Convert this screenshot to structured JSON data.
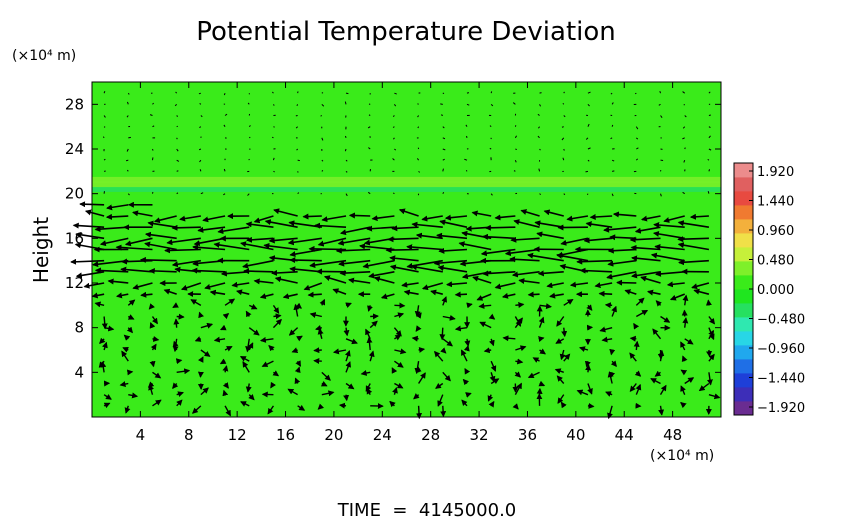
{
  "chart_data": {
    "type": "heatmap",
    "title": "Potential Temperature Deviation",
    "ylabel": "Height",
    "y_unit_label": "(×10⁴ m)",
    "x_unit_label": "(×10⁴ m)",
    "footer": "TIME  =  4145000.0",
    "xlim": [
      0,
      52
    ],
    "ylim": [
      0,
      30
    ],
    "x_ticks": [
      4,
      8,
      12,
      16,
      20,
      24,
      28,
      32,
      36,
      40,
      44,
      48
    ],
    "y_ticks": [
      4,
      8,
      12,
      16,
      20,
      24,
      28
    ],
    "colorbar": {
      "range": [
        -1.92,
        1.92
      ],
      "labels": [
        "1.920",
        "1.440",
        "0.960",
        "0.480",
        "0.000",
        "−0.480",
        "−0.960",
        "−1.440",
        "−1.920"
      ],
      "colors": [
        "#6a2c91",
        "#3d2eb8",
        "#1e3fd8",
        "#1f6fe6",
        "#20a8ee",
        "#28d6e6",
        "#2fe8b0",
        "#26e060",
        "#1fe61f",
        "#3aeb1a",
        "#7ef02a",
        "#c6f03a",
        "#f0e048",
        "#f3b03c",
        "#f07a30",
        "#e84a40",
        "#e06060",
        "#ec8c8c"
      ]
    },
    "field": {
      "background_value": 0.05,
      "band_y": [
        20.2,
        21.5
      ],
      "band_values": [
        -0.35,
        0.25,
        0.35
      ]
    },
    "vector_field": {
      "columns_x": [
        1,
        3,
        5,
        7,
        9,
        11,
        13,
        15,
        17,
        19,
        21,
        23,
        25,
        27,
        29,
        31,
        33,
        35,
        37,
        39,
        41,
        43,
        45,
        47,
        49,
        51
      ],
      "strong_rows": [
        {
          "y": 19,
          "u": -3.0,
          "x_end": 6
        },
        {
          "y": 18,
          "u": -2.6,
          "x_end": 51
        },
        {
          "y": 17,
          "u": -3.6,
          "x_end": 51
        },
        {
          "y": 16,
          "u": -3.8,
          "x_end": 51
        },
        {
          "y": 15,
          "u": -4.0,
          "x_end": 51
        },
        {
          "y": 14,
          "u": -4.0,
          "x_end": 51
        },
        {
          "y": 13,
          "u": -3.6,
          "x_end": 51
        },
        {
          "y": 12,
          "u": -2.4,
          "x_end": 51
        },
        {
          "y": 11,
          "u": -1.6,
          "x_end": 51
        }
      ],
      "weak_rows_y": [
        1,
        2,
        3,
        4,
        5,
        6,
        7,
        8,
        9,
        10,
        20,
        22,
        23,
        24,
        25,
        26,
        27,
        28,
        29
      ]
    }
  }
}
